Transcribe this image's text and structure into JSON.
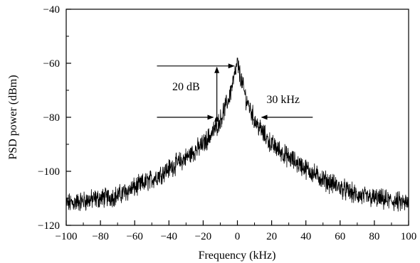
{
  "chart_data": {
    "type": "line",
    "title": "",
    "xlabel": "Frequency (kHz)",
    "ylabel": "PSD power (dBm)",
    "xlim": [
      -100,
      100
    ],
    "ylim": [
      -120,
      -40
    ],
    "x_ticks": [
      -100,
      -80,
      -60,
      -40,
      -20,
      0,
      20,
      40,
      60,
      80,
      100
    ],
    "y_ticks": [
      -120,
      -100,
      -80,
      -60,
      -40
    ],
    "y_tick_labels": [
      "−120",
      "−100",
      "−80",
      "−60",
      "−40"
    ],
    "x_tick_labels": [
      "−100",
      "−80",
      "−60",
      "−40",
      "−20",
      "0",
      "20",
      "40",
      "60",
      "80",
      "100"
    ],
    "grid": false,
    "series": [
      {
        "color": "#000000",
        "x": [
          -100,
          -90,
          -80,
          -70,
          -60,
          -50,
          -40,
          -30,
          -20,
          -15,
          -10,
          -5,
          -3,
          -1,
          0,
          1,
          3,
          5,
          10,
          15,
          20,
          30,
          40,
          50,
          60,
          70,
          80,
          90,
          100
        ],
        "y": [
          -112,
          -111,
          -110,
          -109,
          -106,
          -103,
          -99,
          -95,
          -90,
          -86,
          -81,
          -73,
          -68,
          -63,
          -60,
          -63,
          -68,
          -73,
          -81,
          -86,
          -90,
          -95,
          -99,
          -103,
          -106,
          -109,
          -110,
          -111,
          -112
        ],
        "noise_amplitude_db": 3
      }
    ],
    "annotations": [
      {
        "label": "20 dB",
        "type": "vertical-span",
        "x": -12,
        "y_top": -61,
        "y_bottom": -80
      },
      {
        "label": "30 kHz",
        "type": "horizontal-width",
        "y": -80,
        "x_left": -15,
        "x_right": 15
      }
    ]
  }
}
